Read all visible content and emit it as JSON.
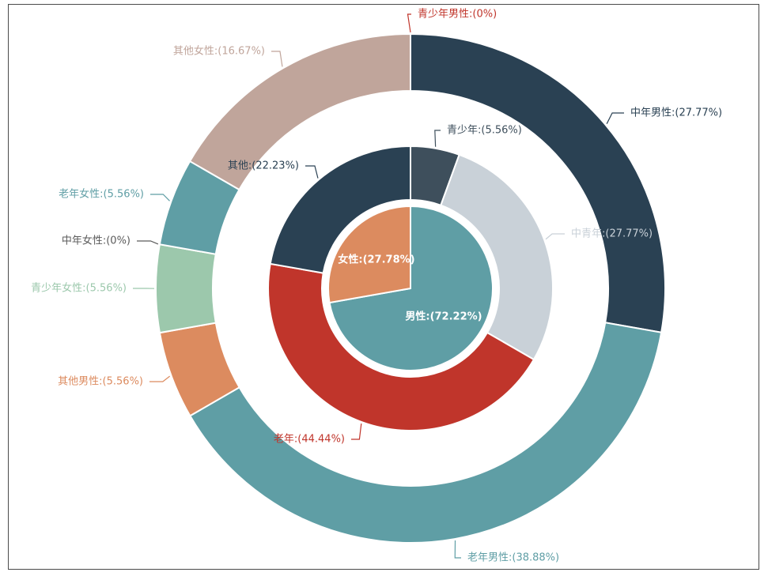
{
  "chart_data": [
    {
      "type": "pie",
      "ring": "inner",
      "slices": [
        {
          "label": "男性:(72.22%)",
          "value": 72.22,
          "color": "#5f9ea5"
        },
        {
          "label": "女性:(27.78%)",
          "value": 27.78,
          "color": "#dc8b5f"
        }
      ]
    },
    {
      "type": "pie",
      "ring": "middle",
      "slices": [
        {
          "label": "青少年:(5.56%)",
          "value": 5.56,
          "color": "#3e4f5c"
        },
        {
          "label": "中青年:(27.77%)",
          "value": 27.77,
          "color": "#c9d1d8"
        },
        {
          "label": "老年:(44.44%)",
          "value": 44.44,
          "color": "#c0352b"
        },
        {
          "label": "其他:(22.23%)",
          "value": 22.23,
          "color": "#2a4153"
        }
      ]
    },
    {
      "type": "pie",
      "ring": "outer",
      "slices": [
        {
          "label": "青少年男性:(0%)",
          "value": 0,
          "color": "#c0352b"
        },
        {
          "label": "中年男性:(27.77%)",
          "value": 27.77,
          "color": "#2a4153"
        },
        {
          "label": "老年男性:(38.88%)",
          "value": 38.88,
          "color": "#5f9ea5"
        },
        {
          "label": "其他男性:(5.56%)",
          "value": 5.56,
          "color": "#dc8b5f"
        },
        {
          "label": "青少年女性:(5.56%)",
          "value": 5.56,
          "color": "#9cc8ac"
        },
        {
          "label": "中年女性:(0%)",
          "value": 0,
          "color": "#5a5a5a"
        },
        {
          "label": "老年女性:(5.56%)",
          "value": 5.56,
          "color": "#5f9ea5"
        },
        {
          "label": "其他女性:(16.67%)",
          "value": 16.67,
          "color": "#c0a59b"
        }
      ]
    }
  ]
}
